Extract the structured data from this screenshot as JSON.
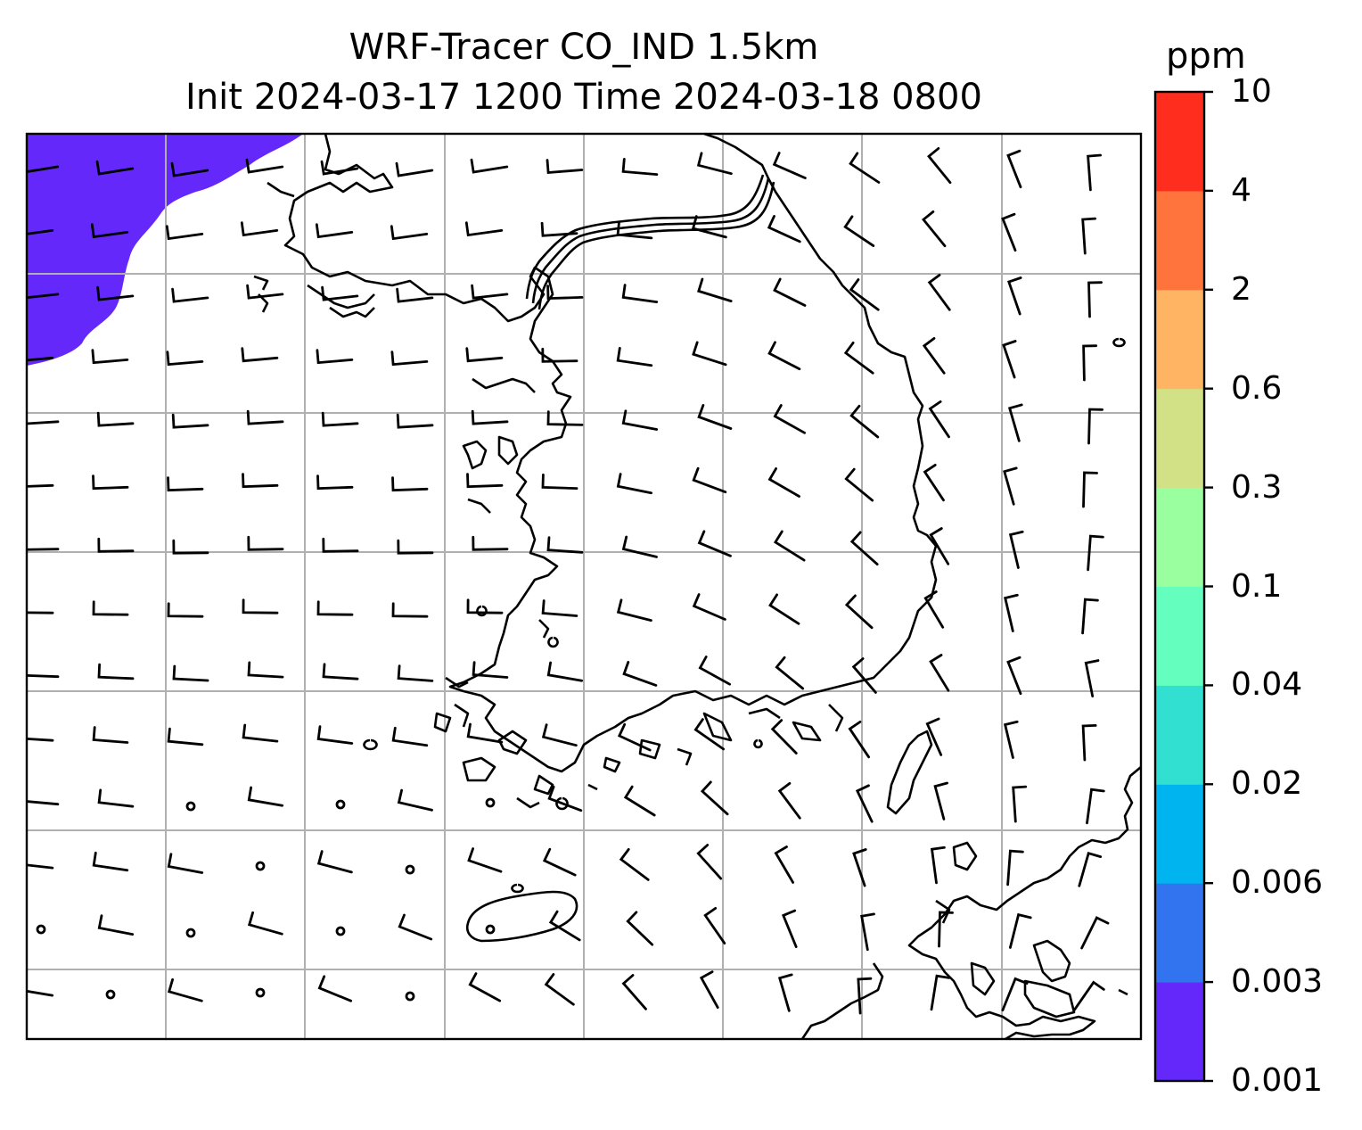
{
  "title": {
    "line1": "WRF-Tracer CO_IND 1.5km",
    "line2": "Init 2024-03-17 1200 Time 2024-03-18 0800"
  },
  "colorbar": {
    "unit": "ppm",
    "labels": [
      "0.001",
      "0.003",
      "0.006",
      "0.02",
      "0.04",
      "0.1",
      "0.3",
      "0.6",
      "2",
      "4",
      "10"
    ],
    "colors": [
      "#6428fa",
      "#3273f0",
      "#00b4f0",
      "#32e0d2",
      "#64ffbe",
      "#9aff9e",
      "#d2e186",
      "#ffb464",
      "#ff733c",
      "#ff2d1e"
    ]
  },
  "map": {
    "field_color": "#6428fa",
    "coastline_color": "#000000",
    "gridline_color": "#b0b0b0",
    "background": "#ffffff"
  }
}
